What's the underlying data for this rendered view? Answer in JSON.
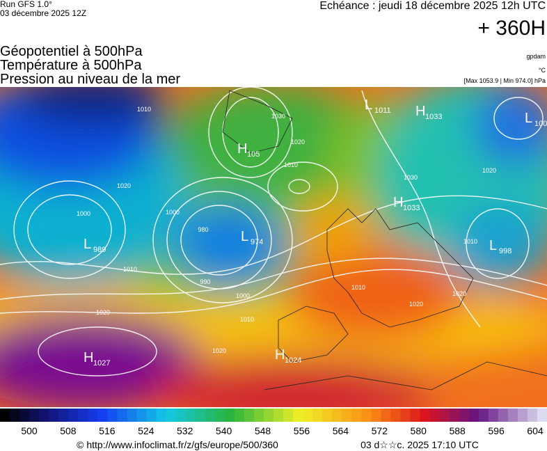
{
  "header": {
    "run": "Run GFS 1.0°",
    "run_date": "03 décembre 2025 12Z",
    "echeance": "Echéance : jeudi 18 décembre 2025 12h UTC",
    "lead": "+ 360H"
  },
  "legend": {
    "lines": [
      "Géopotentiel à 500hPa",
      "Température à 500hPa",
      "Pression au niveau de la mer"
    ],
    "units": [
      "gpdam",
      "°C",
      "[Max 1053.9 | Min 974.0] hPa"
    ]
  },
  "pressure_centers": [
    {
      "type": "H",
      "value": "1027"
    },
    {
      "type": "H",
      "value": "1024"
    },
    {
      "type": "L",
      "value": "974"
    },
    {
      "type": "L",
      "value": "989"
    },
    {
      "type": "H",
      "value": "105"
    },
    {
      "type": "L",
      "value": "1011"
    },
    {
      "type": "H",
      "value": "1033"
    },
    {
      "type": "L",
      "value": "100"
    },
    {
      "type": "H",
      "value": "1033"
    },
    {
      "type": "L",
      "value": "998"
    }
  ],
  "contour_labels": [
    "1010",
    "1000",
    "990",
    "980",
    "1000",
    "1010",
    "1020",
    "1020",
    "1030",
    "1010",
    "1020",
    "1000",
    "1010",
    "1020",
    "1030",
    "1020",
    "1010",
    "1020",
    "1010",
    "1020"
  ],
  "colorbar": {
    "labels": [
      500,
      508,
      516,
      524,
      532,
      540,
      548,
      556,
      564,
      572,
      580,
      588,
      596,
      604
    ]
  },
  "footer": {
    "url": "© http://www.infoclimat.fr/z/gfs/europe/500/360",
    "timestamp": "03 d☆☆c. 2025 17:10 UTC"
  }
}
